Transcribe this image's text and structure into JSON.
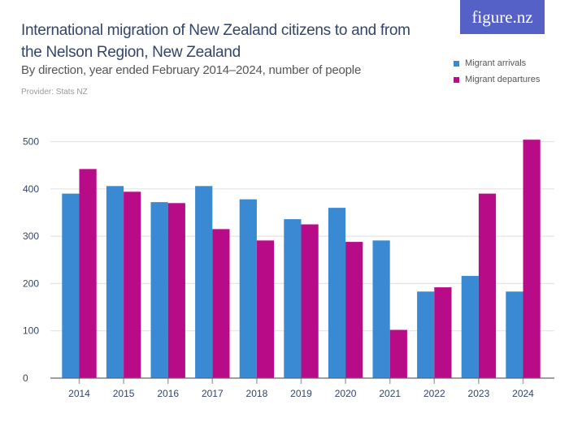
{
  "header": {
    "title": "International migration of New Zealand citizens to and from the Nelson Region, New Zealand",
    "subtitle": "By direction, year ended February 2014–2024, number of people",
    "provider": "Provider: Stats NZ",
    "logo": "figure.nz"
  },
  "chart_data": {
    "type": "bar",
    "title": "International migration of New Zealand citizens to and from the Nelson Region, New Zealand",
    "subtitle": "By direction, year ended February 2014–2024, number of people",
    "categories": [
      "2014",
      "2015",
      "2016",
      "2017",
      "2018",
      "2019",
      "2020",
      "2021",
      "2022",
      "2023",
      "2024"
    ],
    "series": [
      {
        "name": "Migrant arrivals",
        "color": "#3a89d3",
        "values": [
          390,
          406,
          372,
          406,
          378,
          336,
          360,
          291,
          183,
          216,
          183
        ]
      },
      {
        "name": "Migrant departures",
        "color": "#b80b87",
        "values": [
          442,
          394,
          370,
          315,
          291,
          325,
          288,
          102,
          192,
          390,
          504
        ]
      }
    ],
    "ylim": [
      0,
      500
    ],
    "yticks": [
      0,
      100,
      200,
      300,
      400,
      500
    ],
    "grid": true,
    "legend": "top-right"
  }
}
